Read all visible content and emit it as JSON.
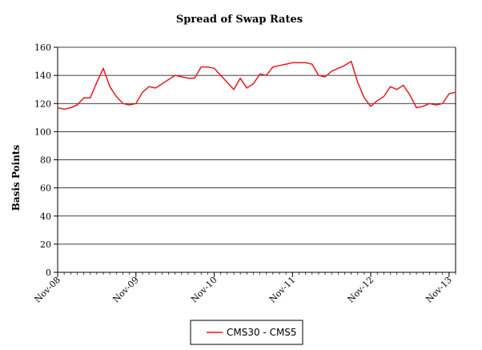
{
  "chart_data": {
    "type": "line",
    "title": "Spread of Swap Rates",
    "xlabel": "",
    "ylabel": "Basis Points",
    "ylim": [
      0,
      160
    ],
    "yticks": [
      0,
      20,
      40,
      60,
      80,
      100,
      120,
      140,
      160
    ],
    "xticks": [
      "Nov-08",
      "Nov-09",
      "Nov-10",
      "Nov-11",
      "Nov-12",
      "Nov-13"
    ],
    "grid": "horizontal",
    "legend_position": "bottom",
    "x_start": "Nov-08",
    "x_frequency": "monthly",
    "series": [
      {
        "name": "CMS30 - CMS5",
        "color": "#e8191e",
        "values": [
          117,
          116,
          117,
          119,
          124,
          124,
          135,
          145,
          132,
          125,
          120,
          119,
          120,
          128,
          132,
          131,
          134,
          137,
          140,
          139,
          138,
          138,
          146,
          146,
          145,
          140,
          135,
          130,
          138,
          131,
          134,
          141,
          140,
          146,
          147,
          148,
          149,
          149,
          149,
          148,
          140,
          139,
          143,
          145,
          147,
          150,
          135,
          124,
          118,
          122,
          125,
          132,
          130,
          133,
          126,
          117,
          118,
          120,
          119,
          120,
          127,
          128
        ]
      }
    ]
  }
}
